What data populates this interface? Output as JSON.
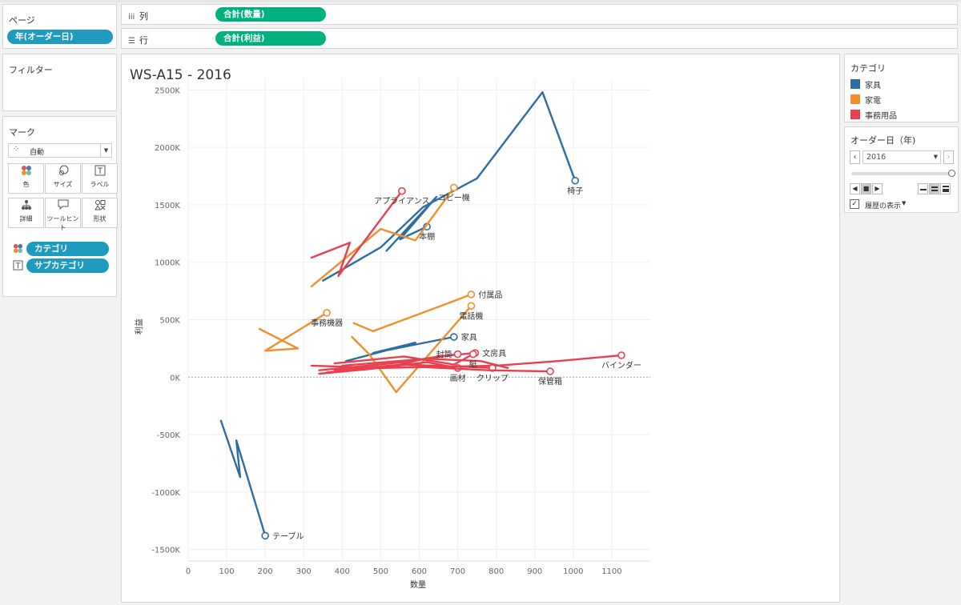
{
  "pages_pane": {
    "title": "ページ",
    "pill": "年(オーダー日)"
  },
  "filters_pane": {
    "title": "フィルター"
  },
  "marks_pane": {
    "title": "マーク",
    "mark_type": "自動",
    "buttons": [
      {
        "label": "色",
        "icon": "color-icon"
      },
      {
        "label": "サイズ",
        "icon": "size-icon"
      },
      {
        "label": "ラベル",
        "icon": "label-icon"
      },
      {
        "label": "詳細",
        "icon": "detail-icon"
      },
      {
        "label": "ツールヒント",
        "icon": "tooltip-icon"
      },
      {
        "label": "形状",
        "icon": "shape-icon"
      }
    ],
    "fields": [
      {
        "label": "カテゴリ",
        "icon": "color-icon"
      },
      {
        "label": "サブカテゴリ",
        "icon": "label-icon"
      }
    ]
  },
  "shelves": {
    "columns": {
      "label": "列",
      "icon": "columns-icon",
      "pill": "合計(数量)"
    },
    "rows": {
      "label": "行",
      "icon": "rows-icon",
      "pill": "合計(利益)"
    }
  },
  "legend": {
    "title": "カテゴリ",
    "items": [
      {
        "label": "家具",
        "color": "#2e6da4"
      },
      {
        "label": "家電",
        "color": "#f28e2b"
      },
      {
        "label": "事務用品",
        "color": "#e8404e"
      }
    ]
  },
  "page_control": {
    "title": "オーダー日（年)",
    "value": "2016",
    "show_history_label": "履歴の表示",
    "show_history_checked": true
  },
  "chart_data": {
    "type": "line",
    "title": "WS-A15 - 2016",
    "xlabel": "数量",
    "ylabel": "利益",
    "xlim": [
      0,
      1200
    ],
    "ylim": [
      -1600000,
      2600000
    ],
    "x_ticks": [
      0,
      100,
      200,
      300,
      400,
      500,
      600,
      700,
      800,
      900,
      1000,
      1100
    ],
    "x_tick_labels": [
      "0",
      "100",
      "200",
      "300",
      "400",
      "500",
      "600",
      "700",
      "800",
      "900",
      "1000",
      "1100"
    ],
    "y_ticks": [
      -1500000,
      -1000000,
      -500000,
      0,
      500000,
      1000000,
      1500000,
      2000000,
      2500000
    ],
    "y_tick_labels": [
      "-1500K",
      "-1000K",
      "-500K",
      "0K",
      "500K",
      "1000K",
      "1500K",
      "2000K",
      "2500K"
    ],
    "grid": true,
    "series": [
      {
        "name": "椅子",
        "category": "家具",
        "color": "#2e6da4",
        "label_pos": "below",
        "points": [
          [
            350,
            840000
          ],
          [
            500,
            1130000
          ],
          [
            610,
            1480000
          ],
          [
            750,
            1730000
          ],
          [
            920,
            2480000
          ],
          [
            1005,
            1710000
          ]
        ]
      },
      {
        "name": "本棚",
        "category": "家具",
        "color": "#2e6da4",
        "label_pos": "below",
        "points": [
          [
            515,
            1100000
          ],
          [
            645,
            1570000
          ],
          [
            550,
            1200000
          ],
          [
            620,
            1310000
          ]
        ]
      },
      {
        "name": "家具",
        "category": "家具",
        "color": "#2e6da4",
        "label_pos": "right",
        "points": [
          [
            410,
            140000
          ],
          [
            590,
            300000
          ],
          [
            480,
            210000
          ],
          [
            690,
            350000
          ]
        ]
      },
      {
        "name": "テーブル",
        "category": "家具",
        "color": "#2e6da4",
        "label_pos": "right",
        "points": [
          [
            85,
            -380000
          ],
          [
            135,
            -870000
          ],
          [
            125,
            -550000
          ],
          [
            200,
            -1380000
          ]
        ]
      },
      {
        "name": "コピー機",
        "category": "家電",
        "color": "#f28e2b",
        "label_pos": "below",
        "points": [
          [
            320,
            790000
          ],
          [
            500,
            1290000
          ],
          [
            590,
            1190000
          ],
          [
            690,
            1650000
          ]
        ]
      },
      {
        "name": "付属品",
        "category": "家電",
        "color": "#f28e2b",
        "label_pos": "right",
        "points": [
          [
            430,
            470000
          ],
          [
            480,
            400000
          ],
          [
            680,
            650000
          ],
          [
            735,
            720000
          ]
        ]
      },
      {
        "name": "電話機",
        "category": "家電",
        "color": "#f28e2b",
        "label_pos": "below",
        "points": [
          [
            425,
            350000
          ],
          [
            470,
            200000
          ],
          [
            540,
            -130000
          ],
          [
            735,
            620000
          ]
        ]
      },
      {
        "name": "事務機器",
        "category": "家電",
        "color": "#f28e2b",
        "label_pos": "below",
        "points": [
          [
            185,
            420000
          ],
          [
            285,
            250000
          ],
          [
            200,
            230000
          ],
          [
            360,
            560000
          ]
        ]
      },
      {
        "name": "アプライアンス",
        "category": "事務用品",
        "color": "#e8404e",
        "label_pos": "below",
        "points": [
          [
            320,
            1040000
          ],
          [
            420,
            1170000
          ],
          [
            390,
            880000
          ],
          [
            555,
            1620000
          ]
        ]
      },
      {
        "name": "バインダー",
        "category": "事務用品",
        "color": "#e8404e",
        "label_pos": "below",
        "points": [
          [
            320,
            100000
          ],
          [
            500,
            80000
          ],
          [
            800,
            100000
          ],
          [
            960,
            140000
          ],
          [
            1125,
            190000
          ]
        ]
      },
      {
        "name": "文房具",
        "category": "事務用品",
        "color": "#e8404e",
        "label_pos": "right",
        "points": [
          [
            340,
            60000
          ],
          [
            560,
            130000
          ],
          [
            650,
            180000
          ],
          [
            745,
            210000
          ]
        ]
      },
      {
        "name": "封筒",
        "category": "事務用品",
        "color": "#e8404e",
        "label_pos": "left",
        "points": [
          [
            360,
            40000
          ],
          [
            540,
            100000
          ],
          [
            600,
            150000
          ],
          [
            700,
            200000
          ]
        ]
      },
      {
        "name": "紙",
        "category": "事務用品",
        "color": "#e8404e",
        "label_pos": "below",
        "points": [
          [
            380,
            120000
          ],
          [
            560,
            180000
          ],
          [
            690,
            110000
          ],
          [
            740,
            200000
          ]
        ]
      },
      {
        "name": "画材",
        "category": "事務用品",
        "color": "#e8404e",
        "label_pos": "below",
        "points": [
          [
            340,
            30000
          ],
          [
            470,
            70000
          ],
          [
            620,
            130000
          ],
          [
            700,
            80000
          ]
        ]
      },
      {
        "name": "クリップ",
        "category": "事務用品",
        "color": "#e8404e",
        "label_pos": "below",
        "points": [
          [
            380,
            60000
          ],
          [
            560,
            110000
          ],
          [
            720,
            90000
          ],
          [
            790,
            80000
          ]
        ]
      },
      {
        "name": "保管箱",
        "category": "事務用品",
        "color": "#e8404e",
        "label_pos": "below",
        "points": [
          [
            390,
            70000
          ],
          [
            600,
            90000
          ],
          [
            780,
            60000
          ],
          [
            940,
            50000
          ]
        ]
      },
      {
        "name": "",
        "category": "事務用品",
        "color": "#e8404e",
        "label_pos": "none",
        "points": [
          [
            400,
            100000
          ],
          [
            620,
            160000
          ],
          [
            760,
            140000
          ],
          [
            830,
            80000
          ]
        ]
      }
    ]
  }
}
